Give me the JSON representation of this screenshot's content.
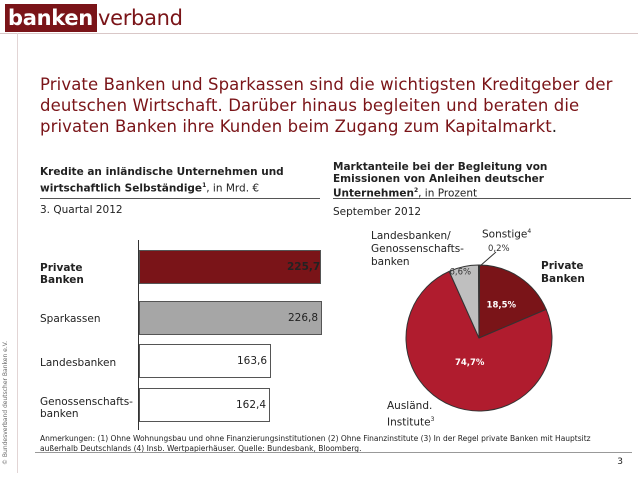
{
  "logo": {
    "part1": "banken",
    "part2": "verband"
  },
  "copyright": "© Bundesverband deutscher Banken e.V.",
  "headline": {
    "text": "Private Banken und Sparkassen sind die wichtigsten Kreditgeber der deutschen Wirtschaft. Darüber hinaus begleiten und beraten die privaten Banken ihre Kunden beim Zugang zum Kapitalmarkt",
    "end": "."
  },
  "left": {
    "title_bold": "Kredite an inländische Unternehmen und wirtschaftlich Selbständige",
    "title_sup": "1",
    "title_rest": ", in Mrd. €",
    "date": "3. Quartal 2012"
  },
  "right": {
    "title_bold": "Marktanteile bei der Begleitung von Emissionen von Anleihen deutscher Unternehmen",
    "title_sup": "2",
    "title_rest": ", in Prozent",
    "date": "September 2012"
  },
  "pie_labels": {
    "landesbanken": "Landesbanken/ Genossenschafts- banken",
    "sonstige": "Sonstige",
    "sonstige_sup": "4",
    "private": "Private Banken",
    "auslaend": "Ausländ. Institute",
    "auslaend_sup": "3"
  },
  "chart_data": [
    {
      "type": "bar",
      "orientation": "horizontal",
      "title": "Kredite an inländische Unternehmen und wirtschaftlich Selbständige1, in Mrd. €",
      "categories": [
        "Private Banken",
        "Sparkassen",
        "Landesbanken",
        "Genossenschafts- banken"
      ],
      "values": [
        225.7,
        226.8,
        163.6,
        162.4
      ],
      "value_labels": [
        "225,7",
        "226,8",
        "163,6",
        "162,4"
      ],
      "colors": [
        "#7a1418",
        "#a6a6a6",
        "#ffffff",
        "#ffffff"
      ],
      "xlim": [
        0,
        240
      ]
    },
    {
      "type": "pie",
      "title": "Marktanteile bei der Begleitung von Emissionen von Anleihen deutscher Unternehmen2, in Prozent",
      "labels": [
        "Private Banken",
        "Ausländ. Institute",
        "Landesbanken/ Genossenschaftsbanken",
        "Sonstige"
      ],
      "values": [
        18.5,
        74.7,
        6.6,
        0.2
      ],
      "value_labels": [
        "18,5%",
        "74,7%",
        "6,6%",
        "0,2%"
      ],
      "colors": [
        "#7a1418",
        "#b01c2e",
        "#bfbfbf",
        "#ffffff"
      ]
    }
  ],
  "notes": "Anmerkungen: (1) Ohne Wohnungsbau und ohne Finanzierungsinstitutionen (2) Ohne Finanzinstitute (3) In der Regel private Banken mit Hauptsitz außerhalb Deutschlands (4) Insb. Wertpapierhäuser. Quelle: Bundesbank, Bloomberg.",
  "page_number": "3"
}
